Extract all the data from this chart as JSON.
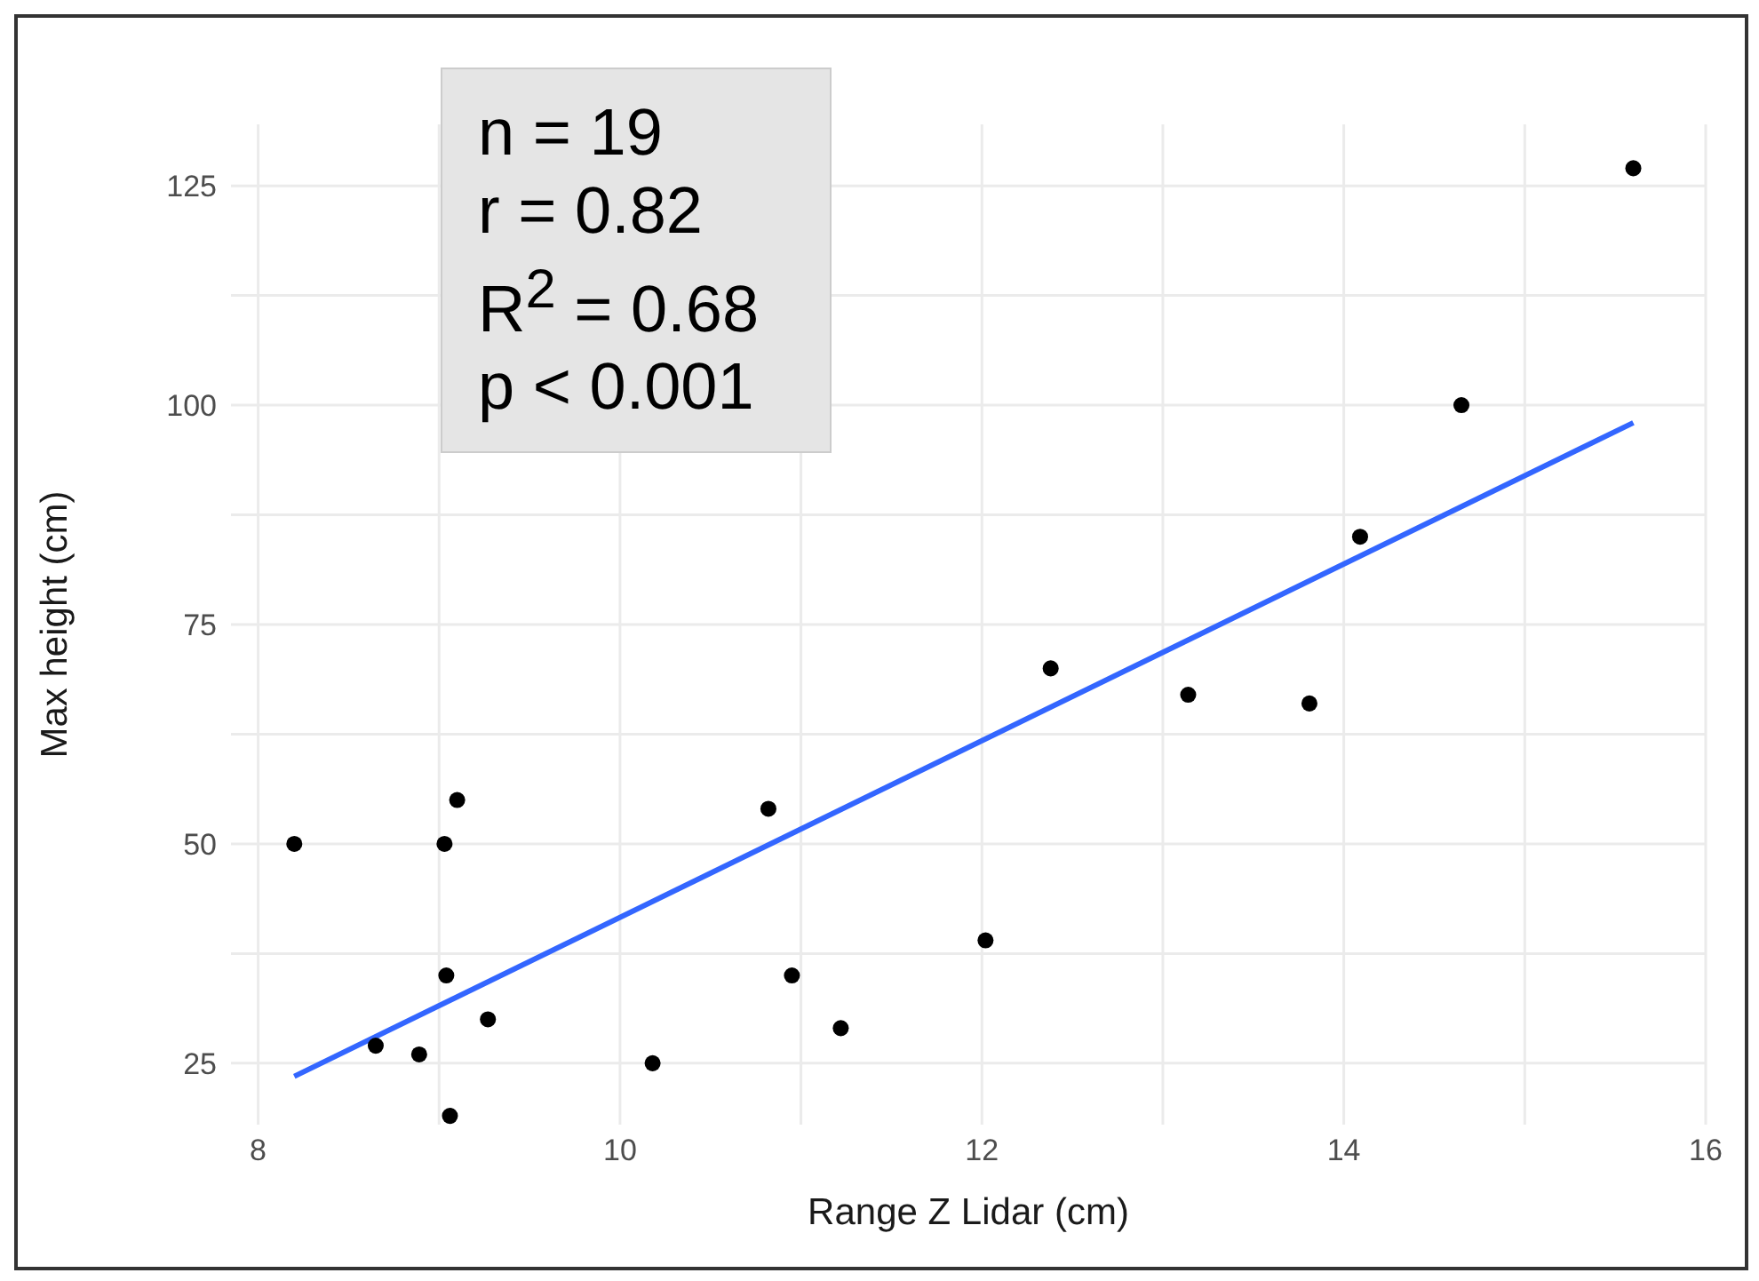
{
  "chart_data": {
    "type": "scatter",
    "xlabel": "Range Z Lidar (cm)",
    "ylabel": "Max height (cm)",
    "annotations": [
      "n = 19",
      "r = 0.82",
      "R$^{2}$ = 0.68",
      "p < 0.001"
    ],
    "series": [
      {
        "color": "#000000",
        "marker": "circle",
        "x": [
          8.2,
          8.65,
          8.89,
          9.03,
          9.1,
          9.04,
          9.27,
          9.06,
          10.18,
          10.82,
          10.95,
          11.22,
          12.02,
          12.38,
          13.14,
          13.81,
          14.09,
          14.65,
          15.6
        ],
        "values": [
          50,
          27,
          26,
          50,
          55,
          35,
          30,
          19,
          25,
          54,
          35,
          29,
          39,
          70,
          67,
          66,
          85,
          100,
          127
        ]
      },
      {
        "type": "line",
        "color": "#3366ff",
        "marker": "none",
        "x": [
          8.2,
          15.6
        ],
        "values": [
          23.5,
          98
        ]
      }
    ],
    "xlim": [
      7.85,
      16
    ],
    "ylim": [
      18,
      132
    ],
    "xticks": [
      8,
      {
        "value": 9,
        "label": null
      },
      10,
      {
        "value": 11,
        "label": null
      },
      12,
      {
        "value": 13,
        "label": null
      },
      14,
      {
        "value": 15,
        "label": null
      },
      16
    ],
    "yticks": [
      25,
      {
        "value": 37.5,
        "label": null
      },
      50,
      {
        "value": 62.5,
        "label": null
      },
      75,
      {
        "value": 87.5,
        "label": null
      },
      100,
      {
        "value": 112.5,
        "label": null
      },
      125
    ],
    "grid": true
  }
}
